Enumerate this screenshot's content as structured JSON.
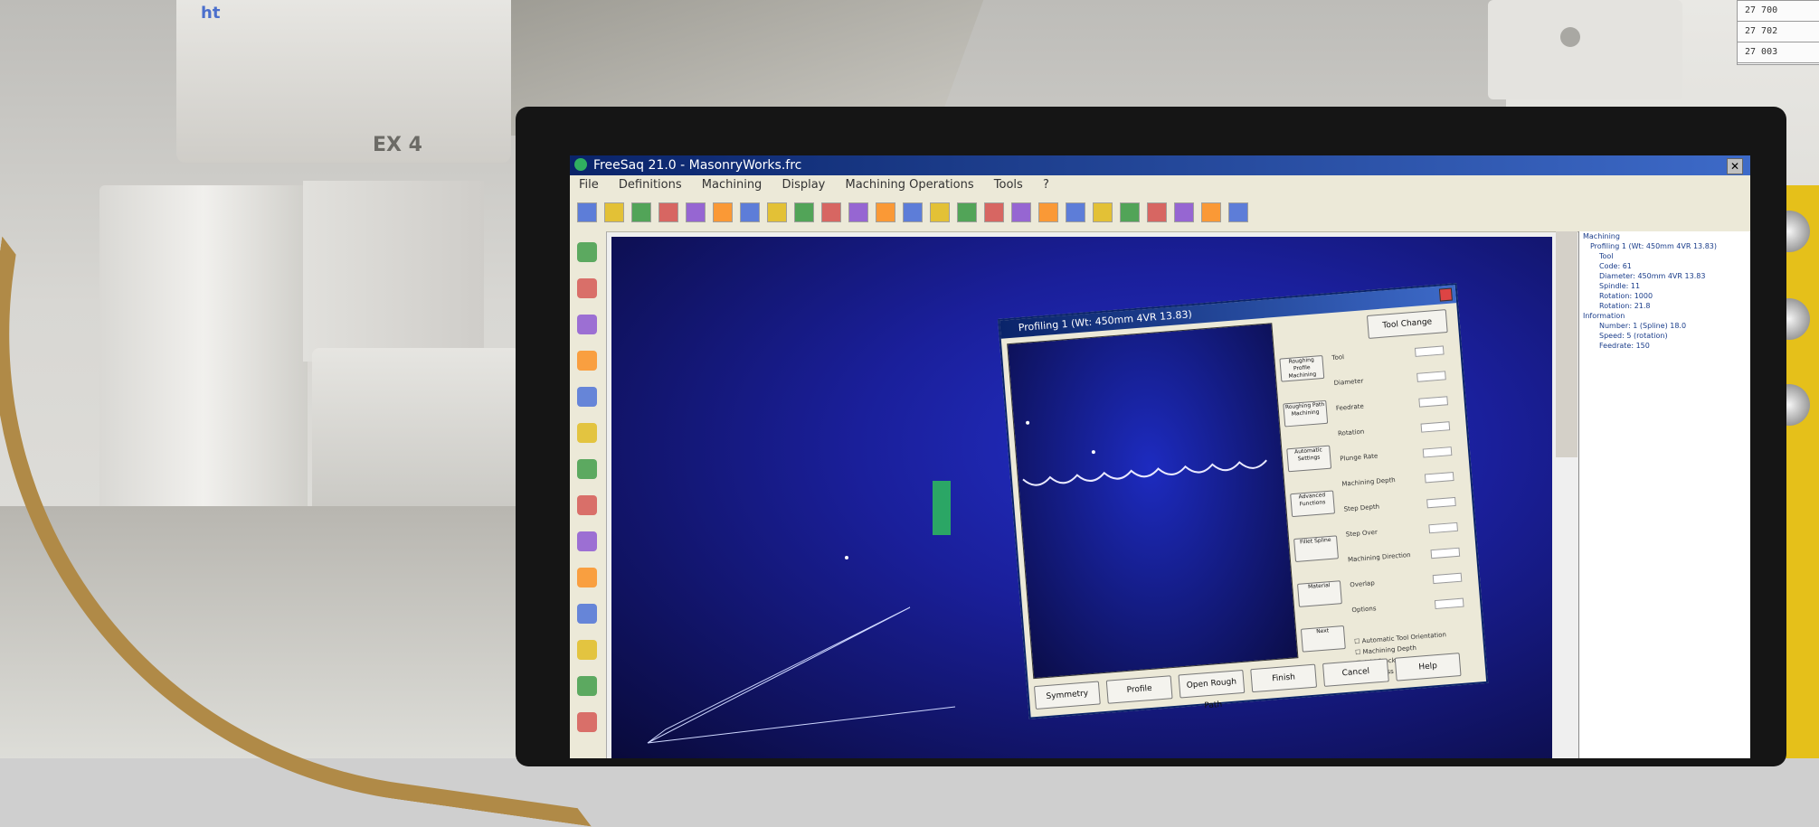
{
  "scene": {
    "gantry_label": "EX 4",
    "gantry_logo": "ht",
    "label_plate": [
      "27 700",
      "27 702",
      "27 003"
    ]
  },
  "app": {
    "title": "FreeSaq 21.0 - MasonryWorks.frc",
    "menu": [
      "File",
      "Definitions",
      "Machining",
      "Display",
      "Machining Operations",
      "Tools",
      "?"
    ],
    "toolbar_icons": [
      "new-icon",
      "open-icon",
      "save-icon",
      "color-icon",
      "grid-icon",
      "profile-icon",
      "profile-icon",
      "profile-icon",
      "marker-icon",
      "edit-icon",
      "cut-icon",
      "cut-icon",
      "copy-icon",
      "arrow-icon",
      "arrow-icon",
      "grid-icon",
      "grid-icon",
      "tool-icon",
      "circle-icon",
      "rectangle-icon",
      "line-icon",
      "layers-icon",
      "doc-icon",
      "flag-icon",
      "settings-icon"
    ],
    "left_tools": [
      "zoom-in-icon",
      "zoom-out-icon",
      "home-icon",
      "screen-icon",
      "cube-icon",
      "pin-icon",
      "target-icon",
      "doc-icon",
      "image-icon",
      "palette-icon",
      "grid-icon",
      "phone-icon",
      "phone-icon",
      "layers-icon"
    ],
    "tree": [
      "Machining",
      "Profiling 1 (Wt: 450mm 4VR 13.83)",
      "Tool",
      "Code: 61",
      "Diameter: 450mm 4VR 13.83",
      "Spindle: 11",
      "Rotation: 1000",
      "Rotation: 21.8",
      "Information",
      "Number: 1 (Spline) 18.0",
      "Speed: 5 (rotation)",
      "Feedrate: 150"
    ]
  },
  "dialog": {
    "title": "Profiling 1 (Wt: 450mm 4VR 13.83)",
    "tool_change": "Tool Change",
    "buttons_side": [
      "Roughing Profile Machining",
      "Roughing Path Machining",
      "Automatic Settings",
      "Advanced Functions",
      "Fillet Spline",
      "Material",
      "Next"
    ],
    "fields": [
      "Tool",
      "Diameter",
      "Feedrate",
      "Rotation",
      "Plunge Rate",
      "Machining Depth",
      "Step Depth",
      "Step Over",
      "Machining Direction",
      "Overlap",
      "Options"
    ],
    "checks": [
      "Automatic Tool Orientation",
      "Machining Depth",
      "Add Stock",
      "Last Pass"
    ],
    "bottom": [
      "Symmetry",
      "Profile",
      "Open Rough Path",
      "Finish",
      "Cancel",
      "Help"
    ]
  }
}
